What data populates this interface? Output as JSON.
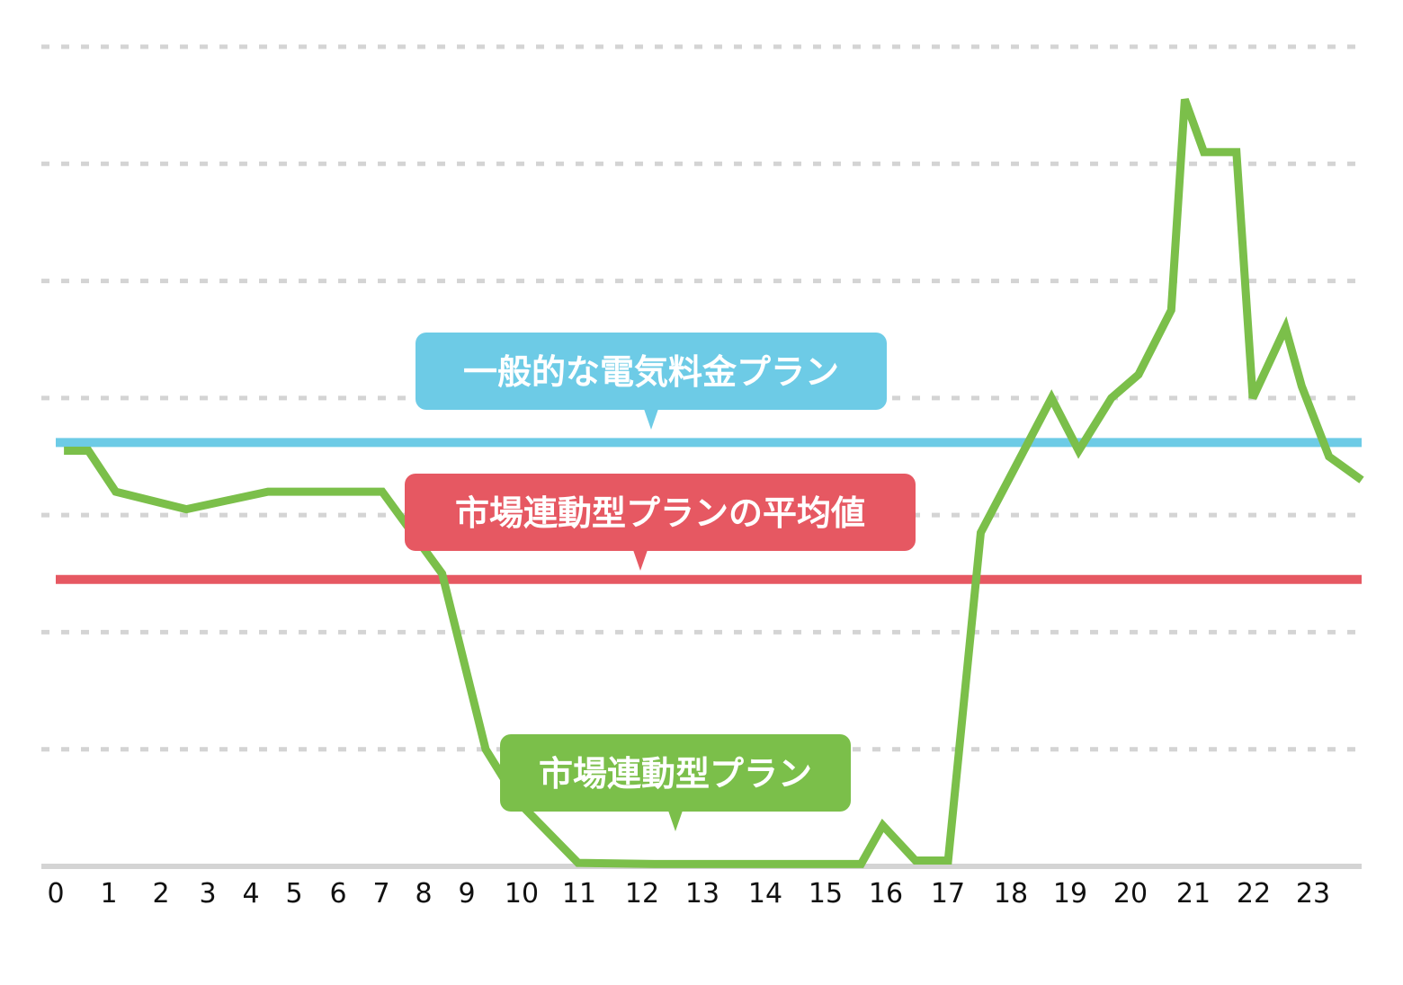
{
  "chart_data": {
    "type": "line",
    "title": "",
    "xlabel": "",
    "ylabel": "",
    "x_ticks": [
      "0",
      "1",
      "2",
      "3",
      "4",
      "5",
      "6",
      "7",
      "8",
      "9",
      "10",
      "11",
      "12",
      "13",
      "14",
      "15",
      "16",
      "17",
      "18",
      "19",
      "20",
      "21",
      "22",
      "23"
    ],
    "xlim": [
      0,
      24
    ],
    "ylim": [
      0,
      7
    ],
    "y_grid_lines": [
      1,
      2,
      3,
      4,
      5,
      6,
      7
    ],
    "grid": true,
    "colors": {
      "market_plan": "#7bbf4a",
      "general_plan": "#6dcbe6",
      "market_average": "#e65862",
      "grid": "#d4d4d4",
      "axis": "#d4d4d4"
    },
    "series": [
      {
        "name": "市場連動型プラン",
        "type": "line",
        "color": "#7bbf4a",
        "x": [
          0.15,
          0.6,
          1.1,
          2.4,
          3.9,
          5.4,
          6.0,
          7.1,
          7.9,
          8.5,
          9.6,
          11.0,
          13.0,
          14.8,
          15.2,
          15.8,
          16.4,
          17.0,
          18.3,
          18.8,
          19.4,
          19.9,
          20.5,
          20.75,
          21.1,
          21.7,
          22.0,
          22.6,
          22.9,
          23.4,
          24.0
        ],
        "y": [
          3.55,
          3.55,
          3.2,
          3.05,
          3.2,
          3.2,
          3.2,
          2.5,
          1.0,
          0.55,
          0.03,
          0.02,
          0.02,
          0.02,
          0.35,
          0.05,
          0.05,
          2.85,
          4.0,
          3.55,
          4.0,
          4.2,
          4.75,
          6.55,
          6.1,
          6.1,
          4.0,
          4.6,
          4.1,
          3.5,
          3.3
        ]
      },
      {
        "name": "一般的な電気料金プラン",
        "type": "constant",
        "color": "#6dcbe6",
        "value": 3.62
      },
      {
        "name": "市場連動型プランの平均値",
        "type": "constant",
        "color": "#e65862",
        "value": 2.45
      }
    ]
  }
}
